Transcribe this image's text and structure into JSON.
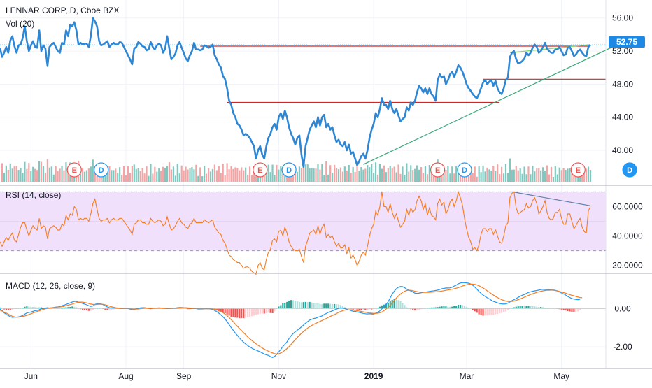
{
  "header": {
    "symbol_line": "LENNAR CORP, D, Cboe BZX",
    "volume_label": "Vol (20)"
  },
  "rsi_label": "RSI (14, close)",
  "macd_label": "MACD (12, 26, close, 9)",
  "last_price": "52.75",
  "colors": {
    "price_line": "#2f87d4",
    "price_tag": "#1e88e5",
    "rsi_line": "#f57c20",
    "rsi_band": "#f0e0fb",
    "macd_line": "#2196f3",
    "signal_line": "#f57c20",
    "hist_up_strong": "#26a69a",
    "hist_up_weak": "#b2dfdb",
    "hist_down_strong": "#ef5350",
    "hist_down_weak": "#ffcdd2",
    "vol_up": "#7fc8c0",
    "vol_down": "#f4a4a4",
    "resistance": "#c62828",
    "trend_green": "#3aa87a",
    "earnings": "#ef5350",
    "dividend": "#2196f3"
  },
  "chart_data": [
    {
      "type": "line",
      "name": "price",
      "title": "LENNAR CORP, D, Cboe BZX",
      "x_ticks": [
        "Jun",
        "Aug",
        "Sep",
        "Nov",
        "2019",
        "Mar",
        "May"
      ],
      "y_ticks": [
        "40.00",
        "44.00",
        "48.00",
        "52.00",
        "56.00"
      ],
      "ylim": [
        36.2,
        57.5
      ],
      "last_value": 52.75,
      "values": [
        52.4,
        51.3,
        51.8,
        52.5,
        51.8,
        53.3,
        53.8,
        52.6,
        51.8,
        52.7,
        52.8,
        53.6,
        55.0,
        53.2,
        52.0,
        52.7,
        53.2,
        52.5,
        52.4,
        54.5,
        52.0,
        52.7,
        52.3,
        50.2,
        52.5,
        52.8,
        53.0,
        52.5,
        52.0,
        51.8,
        53.0,
        52.8,
        54.5,
        53.8,
        55.2,
        55.0,
        55.5,
        54.5,
        52.8,
        53.0,
        52.8,
        52.9,
        52.9,
        52.5,
        53.8,
        56.0,
        55.6,
        55.0,
        53.2,
        52.7,
        52.8,
        53.0,
        53.2,
        52.5,
        52.8,
        53.0,
        52.8,
        52.8,
        53.1,
        53.0,
        52.5,
        52.0,
        51.5,
        51.0,
        50.4,
        52.3,
        52.5,
        53.1,
        52.9,
        52.6,
        52.5,
        52.1,
        52.2,
        53.1,
        52.5,
        52.2,
        52.7,
        52.9,
        52.7,
        51.8,
        52.3,
        53.8,
        52.3,
        51.0,
        51.3,
        51.7,
        52.7,
        53.1,
        52.4,
        51.8,
        51.1,
        50.8,
        51.5,
        52.0,
        53.0,
        52.2,
        52.2,
        52.1,
        52.2,
        52.7,
        52.6,
        52.4,
        52.5,
        52.8,
        51.5,
        51.0,
        50.4,
        50.0,
        49.0,
        48.6,
        47.5,
        46.0,
        45.5,
        44.5,
        44.0,
        43.2,
        43.0,
        42.5,
        41.8,
        42.0,
        41.8,
        41.5,
        41.0,
        40.5,
        39.0,
        40.0,
        40.5,
        39.5,
        39.0,
        40.5,
        41.5,
        42.0,
        42.8,
        43.2,
        42.5,
        44.0,
        44.5,
        43.8,
        44.8,
        44.0,
        42.8,
        42.0,
        41.5,
        40.7,
        41.5,
        41.8,
        39.5,
        38.0,
        40.5,
        41.5,
        42.5,
        43.0,
        43.5,
        42.8,
        44.0,
        43.0,
        44.0,
        44.3,
        42.8,
        43.2,
        42.5,
        42.8,
        41.8,
        41.0,
        41.3,
        40.7,
        40.5,
        41.0,
        40.0,
        40.7,
        39.6,
        39.8,
        39.0,
        38.2,
        38.7,
        39.3,
        39.6,
        39.0,
        40.0,
        41.5,
        42.5,
        43.2,
        44.5,
        44.0,
        45.0,
        46.3,
        45.5,
        45.5,
        45.0,
        46.0,
        45.0,
        44.5,
        45.0,
        44.2,
        43.5,
        43.8,
        44.0,
        45.2,
        44.8,
        45.8,
        45.5,
        46.0,
        47.0,
        47.8,
        47.5,
        47.0,
        47.5,
        46.8,
        47.5,
        46.8,
        46.5,
        46.0,
        48.5,
        49.2,
        48.8,
        49.0,
        48.0,
        48.5,
        49.2,
        49.5,
        48.9,
        49.5,
        50.3,
        50.0,
        49.5,
        48.8,
        48.0,
        47.5,
        47.2,
        46.8,
        46.5,
        46.3,
        46.8,
        47.5,
        48.2,
        48.5,
        48.0,
        48.3,
        48.5,
        47.8,
        48.4,
        47.5,
        47.0,
        46.8,
        47.5,
        48.5,
        48.8,
        51.3,
        51.8,
        52.0,
        51.0,
        50.5,
        50.6,
        50.8,
        51.1,
        51.8,
        51.5,
        51.8,
        52.4,
        52.8,
        52.5,
        51.8,
        52.0,
        52.5,
        53.0,
        52.3,
        52.0,
        51.8,
        51.8,
        52.2,
        52.2,
        52.5,
        52.0,
        51.5,
        51.6,
        52.4,
        52.5,
        52.0,
        51.4,
        51.6,
        52.0,
        52.2,
        51.8,
        51.5,
        51.4,
        52.5,
        52.75
      ],
      "annotations": [
        {
          "kind": "earnings",
          "label": "E",
          "index": 36
        },
        {
          "kind": "dividend",
          "label": "D",
          "index": 49
        },
        {
          "kind": "earnings",
          "label": "E",
          "index": 126
        },
        {
          "kind": "dividend",
          "label": "D",
          "index": 140
        },
        {
          "kind": "earnings",
          "label": "E",
          "index": 212
        },
        {
          "kind": "dividend",
          "label": "D",
          "index": 225
        },
        {
          "kind": "earnings",
          "label": "E",
          "index": 280
        },
        {
          "kind": "dividend",
          "label": "D",
          "index": 305
        }
      ],
      "resistance_levels": [
        52.6,
        45.8,
        48.6
      ]
    },
    {
      "type": "line",
      "name": "rsi",
      "title": "RSI (14, close)",
      "y_ticks": [
        "20.0000",
        "40.0000",
        "60.0000"
      ],
      "ylim": [
        17,
        73
      ],
      "band": [
        30,
        70
      ],
      "values": [
        36,
        33,
        36,
        39,
        37,
        40,
        42,
        37,
        36,
        41,
        46,
        49,
        49,
        44,
        40,
        44,
        47,
        45,
        44,
        52,
        45,
        47,
        46,
        38,
        45,
        46,
        47,
        46,
        44,
        44,
        48,
        47,
        54,
        51,
        55,
        54,
        60,
        58,
        51,
        52,
        51,
        52,
        52,
        50,
        55,
        62,
        65,
        58,
        52,
        50,
        51,
        51,
        52,
        49,
        51,
        52,
        51,
        51,
        52,
        52,
        50,
        48,
        46,
        44,
        41,
        48,
        49,
        51,
        51,
        49,
        49,
        48,
        48,
        52,
        50,
        49,
        50,
        51,
        50,
        47,
        48,
        53,
        48,
        44,
        45,
        47,
        50,
        52,
        49,
        48,
        46,
        45,
        48,
        49,
        52,
        49,
        49,
        49,
        49,
        51,
        50,
        49,
        50,
        51,
        46,
        44,
        42,
        41,
        37,
        35,
        31,
        27,
        26,
        24,
        23,
        22,
        22,
        20,
        18,
        19,
        19,
        18,
        16,
        15,
        14,
        20,
        22,
        18,
        17,
        24,
        29,
        31,
        37,
        38,
        36,
        43,
        44,
        40,
        46,
        42,
        36,
        33,
        31,
        30,
        30,
        31,
        26,
        22,
        33,
        37,
        42,
        43,
        44,
        41,
        47,
        41,
        46,
        48,
        39,
        41,
        39,
        40,
        36,
        33,
        35,
        32,
        32,
        34,
        28,
        32,
        25,
        27,
        24,
        20,
        23,
        27,
        29,
        27,
        33,
        40,
        45,
        48,
        57,
        54,
        60,
        70,
        60,
        60,
        56,
        62,
        56,
        52,
        55,
        50,
        46,
        48,
        50,
        58,
        54,
        59,
        56,
        58,
        64,
        67,
        64,
        58,
        62,
        54,
        59,
        54,
        53,
        51,
        62,
        65,
        61,
        63,
        55,
        58,
        63,
        65,
        60,
        64,
        70,
        66,
        61,
        52,
        45,
        39,
        36,
        31,
        32,
        30,
        34,
        41,
        45,
        45,
        43,
        45,
        45,
        41,
        44,
        40,
        36,
        35,
        40,
        47,
        49,
        66,
        69,
        70,
        59,
        55,
        56,
        57,
        58,
        62,
        59,
        60,
        64,
        66,
        62,
        55,
        57,
        60,
        64,
        56,
        52,
        51,
        52,
        56,
        56,
        58,
        52,
        48,
        48,
        55,
        55,
        50,
        45,
        47,
        50,
        52,
        46,
        43,
        42,
        57,
        60
      ]
    },
    {
      "type": "line",
      "name": "macd",
      "title": "MACD (12, 26, close, 9)",
      "y_ticks": [
        "-2.00",
        "0.00"
      ],
      "ylim": [
        -2.95,
        1.7
      ],
      "macd": [
        -0.02,
        -0.1,
        -0.22,
        -0.3,
        -0.36,
        -0.42,
        -0.46,
        -0.45,
        -0.45,
        -0.43,
        -0.4,
        -0.36,
        -0.29,
        -0.23,
        -0.2,
        -0.18,
        -0.14,
        -0.11,
        -0.09,
        -0.06,
        -0.01,
        0.0,
        0.03,
        0.05,
        0.03,
        0.04,
        0.06,
        0.08,
        0.09,
        0.11,
        0.15,
        0.18,
        0.22,
        0.26,
        0.3,
        0.35,
        0.38,
        0.38,
        0.34,
        0.31,
        0.27,
        0.24,
        0.2,
        0.15,
        0.12,
        0.14,
        0.22,
        0.26,
        0.27,
        0.25,
        0.2,
        0.14,
        0.09,
        0.05,
        0.04,
        0.03,
        0.03,
        0.02,
        0.01,
        0.0,
        0.01,
        0.01,
        0.0,
        -0.03,
        -0.07,
        -0.04,
        -0.01,
        0.02,
        0.04,
        0.05,
        0.05,
        0.03,
        0.01,
        0.0,
        0.01,
        0.02,
        0.03,
        0.04,
        0.03,
        0.02,
        0.01,
        0.0,
        0.0,
        0.01,
        0.02,
        0.03,
        0.05,
        0.06,
        0.06,
        0.05,
        0.04,
        0.01,
        0.0,
        0.0,
        0.0,
        0.0,
        -0.02,
        -0.02,
        -0.02,
        -0.01,
        -0.01,
        -0.01,
        -0.02,
        -0.05,
        -0.1,
        -0.16,
        -0.24,
        -0.33,
        -0.43,
        -0.54,
        -0.68,
        -0.84,
        -1.0,
        -1.14,
        -1.28,
        -1.41,
        -1.54,
        -1.65,
        -1.76,
        -1.85,
        -1.94,
        -2.01,
        -2.07,
        -2.13,
        -2.17,
        -2.22,
        -2.26,
        -2.32,
        -2.38,
        -2.42,
        -2.45,
        -2.51,
        -2.56,
        -2.5,
        -2.4,
        -2.26,
        -2.14,
        -1.98,
        -1.87,
        -1.74,
        -1.57,
        -1.42,
        -1.31,
        -1.21,
        -1.13,
        -1.05,
        -0.96,
        -0.86,
        -0.76,
        -0.68,
        -0.6,
        -0.56,
        -0.52,
        -0.5,
        -0.45,
        -0.42,
        -0.38,
        -0.31,
        -0.26,
        -0.2,
        -0.16,
        -0.12,
        -0.07,
        -0.03,
        0.02,
        0.04,
        0.03,
        0.0,
        -0.04,
        -0.07,
        -0.1,
        -0.14,
        -0.15,
        -0.17,
        -0.2,
        -0.23,
        -0.25,
        -0.27,
        -0.28,
        -0.27,
        -0.28,
        -0.28,
        -0.24,
        -0.19,
        -0.12,
        -0.01,
        0.1,
        0.22,
        0.36,
        0.56,
        0.76,
        0.92,
        1.04,
        1.12,
        1.16,
        1.15,
        1.1,
        1.02,
        0.96,
        0.93,
        0.87,
        0.81,
        0.8,
        0.81,
        0.83,
        0.85,
        0.87,
        0.88,
        0.9,
        0.92,
        0.93,
        0.95,
        0.97,
        1.0,
        1.04,
        1.06,
        1.08,
        1.08,
        1.09,
        1.12,
        1.18,
        1.23,
        1.3,
        1.34,
        1.36,
        1.36,
        1.35,
        1.33,
        1.29,
        1.22,
        1.13,
        1.02,
        0.9,
        0.8,
        0.71,
        0.64,
        0.57,
        0.51,
        0.44,
        0.38,
        0.34,
        0.3,
        0.27,
        0.25,
        0.24,
        0.25,
        0.29,
        0.35,
        0.42,
        0.47,
        0.53,
        0.59,
        0.65,
        0.7,
        0.74,
        0.8,
        0.85,
        0.88,
        0.91,
        0.93,
        0.95,
        0.97,
        1.0,
        1.01,
        1.0,
        1.0,
        0.99,
        0.98,
        0.98,
        0.96,
        0.92,
        0.87,
        0.82,
        0.77,
        0.71,
        0.64,
        0.58,
        0.53,
        0.5,
        0.48,
        0.47,
        0.49
      ],
      "signal": [
        -0.08,
        -0.13,
        -0.18,
        -0.23,
        -0.29,
        -0.35,
        -0.4,
        -0.43,
        -0.45,
        -0.45,
        -0.43,
        -0.41,
        -0.39,
        -0.35,
        -0.31,
        -0.27,
        -0.23,
        -0.19,
        -0.15,
        -0.12,
        -0.08,
        -0.04,
        -0.01,
        0.01,
        0.03,
        0.05,
        0.06,
        0.07,
        0.08,
        0.09,
        0.1,
        0.12,
        0.15,
        0.18,
        0.21,
        0.24,
        0.28,
        0.31,
        0.33,
        0.34,
        0.34,
        0.32,
        0.3,
        0.27,
        0.24,
        0.22,
        0.21,
        0.22,
        0.23,
        0.23,
        0.22,
        0.2,
        0.17,
        0.13,
        0.1,
        0.07,
        0.05,
        0.03,
        0.02,
        0.01,
        0.01,
        0.0,
        0.0,
        -0.01,
        -0.02,
        -0.03,
        -0.03,
        -0.02,
        -0.01,
        0.01,
        0.02,
        0.03,
        0.03,
        0.03,
        0.02,
        0.02,
        0.02,
        0.02,
        0.03,
        0.03,
        0.02,
        0.01,
        0.01,
        0.01,
        0.01,
        0.01,
        0.02,
        0.03,
        0.04,
        0.05,
        0.05,
        0.04,
        0.03,
        0.02,
        0.01,
        0.0,
        0.0,
        -0.01,
        -0.01,
        -0.01,
        -0.01,
        -0.01,
        -0.01,
        -0.02,
        -0.04,
        -0.06,
        -0.1,
        -0.15,
        -0.21,
        -0.29,
        -0.37,
        -0.47,
        -0.58,
        -0.69,
        -0.81,
        -0.93,
        -1.04,
        -1.15,
        -1.26,
        -1.37,
        -1.48,
        -1.58,
        -1.67,
        -1.76,
        -1.84,
        -1.92,
        -1.99,
        -2.06,
        -2.12,
        -2.18,
        -2.23,
        -2.28,
        -2.32,
        -2.36,
        -2.38,
        -2.37,
        -2.32,
        -2.26,
        -2.18,
        -2.09,
        -1.99,
        -1.87,
        -1.75,
        -1.63,
        -1.51,
        -1.4,
        -1.29,
        -1.2,
        -1.11,
        -1.02,
        -0.95,
        -0.88,
        -0.82,
        -0.77,
        -0.72,
        -0.67,
        -0.62,
        -0.57,
        -0.52,
        -0.46,
        -0.41,
        -0.36,
        -0.31,
        -0.26,
        -0.2,
        -0.15,
        -0.11,
        -0.08,
        -0.07,
        -0.06,
        -0.07,
        -0.08,
        -0.09,
        -0.11,
        -0.13,
        -0.15,
        -0.17,
        -0.19,
        -0.21,
        -0.23,
        -0.24,
        -0.25,
        -0.25,
        -0.24,
        -0.22,
        -0.18,
        -0.11,
        -0.03,
        0.07,
        0.18,
        0.3,
        0.43,
        0.56,
        0.67,
        0.77,
        0.85,
        0.91,
        0.95,
        0.96,
        0.96,
        0.94,
        0.91,
        0.89,
        0.87,
        0.86,
        0.85,
        0.85,
        0.85,
        0.85,
        0.86,
        0.87,
        0.88,
        0.89,
        0.9,
        0.92,
        0.94,
        0.96,
        0.98,
        1.0,
        1.02,
        1.04,
        1.07,
        1.1,
        1.14,
        1.18,
        1.22,
        1.25,
        1.27,
        1.28,
        1.28,
        1.27,
        1.24,
        1.2,
        1.14,
        1.08,
        1.01,
        0.93,
        0.86,
        0.78,
        0.71,
        0.64,
        0.58,
        0.52,
        0.47,
        0.43,
        0.4,
        0.38,
        0.37,
        0.38,
        0.4,
        0.43,
        0.47,
        0.51,
        0.55,
        0.6,
        0.65,
        0.69,
        0.74,
        0.78,
        0.81,
        0.85,
        0.88,
        0.91,
        0.93,
        0.95,
        0.96,
        0.96,
        0.97,
        0.96,
        0.95,
        0.93,
        0.9,
        0.87,
        0.84,
        0.81,
        0.77,
        0.73,
        0.7,
        0.67,
        0.64,
        0.61,
        0.58,
        0.57
      ]
    }
  ]
}
